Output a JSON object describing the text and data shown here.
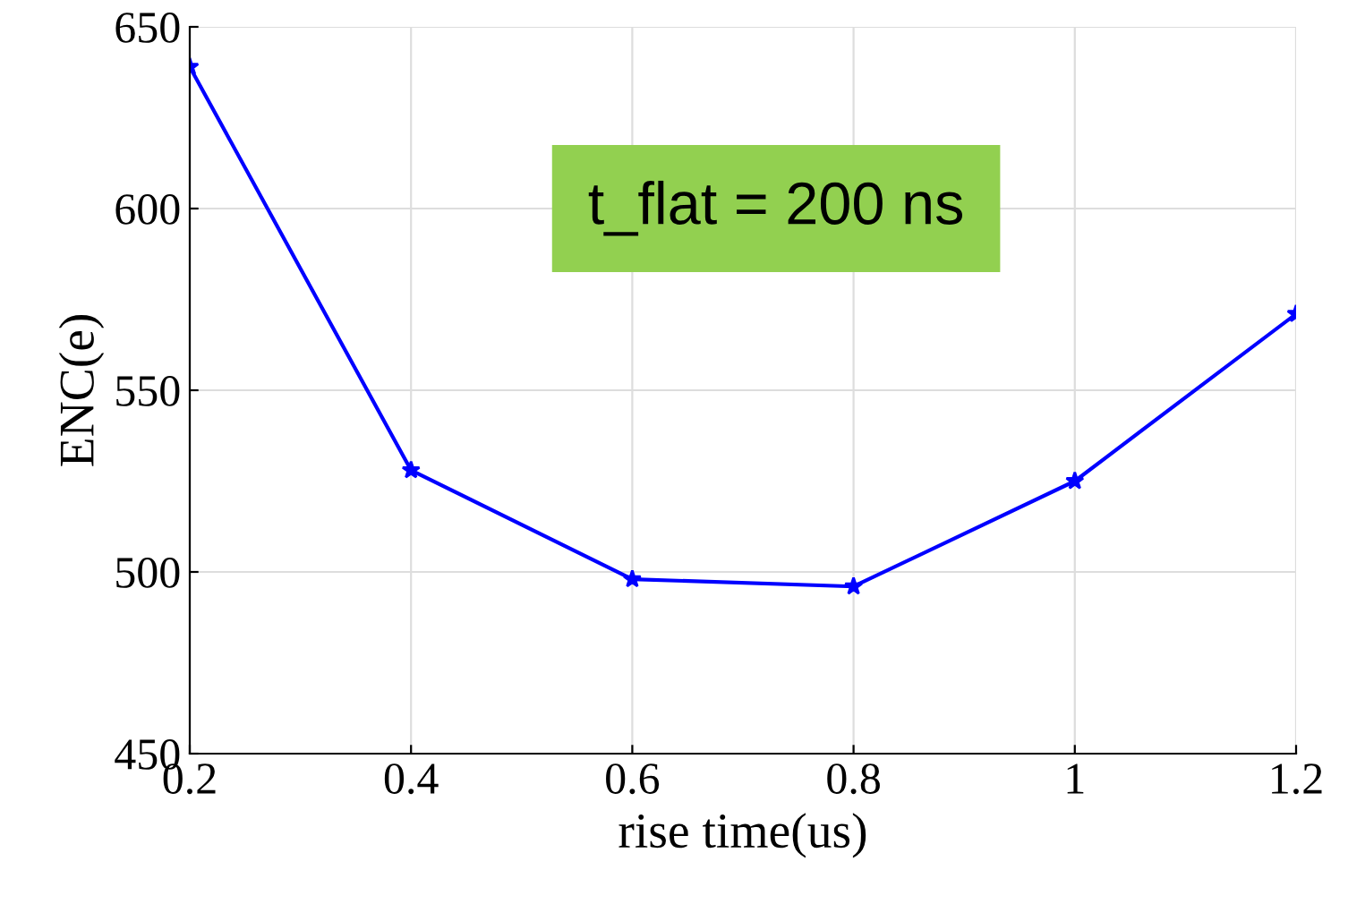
{
  "chart_data": {
    "type": "line",
    "xlabel": "rise time(us)",
    "ylabel": "ENC(e)",
    "x": [
      0.2,
      0.4,
      0.6,
      0.8,
      1,
      1.2
    ],
    "series": [
      {
        "color": "#0000ff",
        "values": [
          639,
          528,
          498,
          496,
          525,
          571
        ]
      }
    ],
    "xlim": [
      0.2,
      1.2
    ],
    "xticks": [
      0.2,
      0.4,
      0.6,
      0.8,
      1,
      1.2
    ],
    "ylim": [
      450,
      650
    ],
    "yticks": [
      450,
      500,
      550,
      600,
      650
    ],
    "grid": true,
    "marker": "star",
    "line_style": "solid",
    "annotations": [
      "t_flat = 200 ns"
    ]
  }
}
